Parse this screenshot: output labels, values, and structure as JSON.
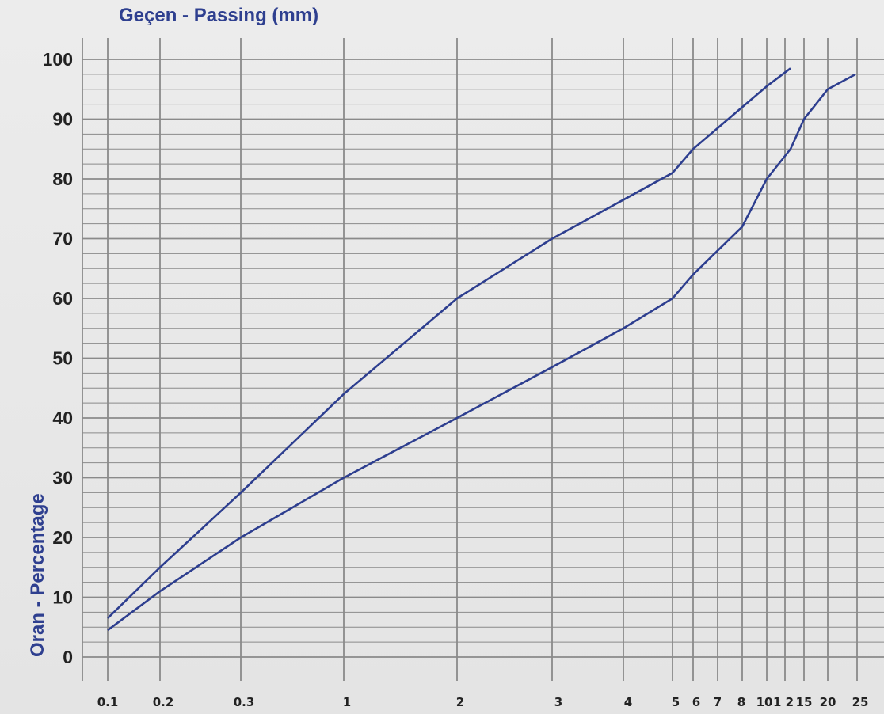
{
  "chart_data": {
    "type": "line",
    "title": "Geçen - Passing (mm)",
    "xlabel": "",
    "ylabel": "Oran - Percentage",
    "ylim": [
      0,
      100
    ],
    "y_ticks": [
      "0",
      "10",
      "20",
      "30",
      "40",
      "50",
      "60",
      "70",
      "80",
      "90",
      "100"
    ],
    "x_tick_labels": [
      "0.1",
      "0.2",
      "0.3",
      "1",
      "2",
      "3",
      "4",
      "5",
      "6",
      "7",
      "8",
      "10",
      "1 2",
      "15",
      "20",
      "25"
    ],
    "grid": true,
    "series": [
      {
        "x": [
          "0.1",
          "0.2",
          "0.3",
          "1",
          "2",
          "3",
          "4",
          "5",
          "6",
          "7",
          "8",
          "10",
          "12"
        ],
        "values": [
          6.5,
          15,
          27.5,
          44,
          60,
          70,
          76.5,
          81,
          85,
          88.5,
          92,
          95.5,
          98.5
        ]
      },
      {
        "x": [
          "0.1",
          "0.2",
          "0.3",
          "1",
          "2",
          "3",
          "4",
          "5",
          "6",
          "7",
          "8",
          "10",
          "12",
          "15",
          "20",
          "25"
        ],
        "values": [
          4.5,
          11,
          20,
          30,
          40,
          48.5,
          55,
          60,
          64,
          68,
          72,
          80,
          85,
          90,
          95,
          97.5
        ]
      }
    ],
    "line_color": "#2d3e8f",
    "grid_color": "#8a8a8a"
  }
}
